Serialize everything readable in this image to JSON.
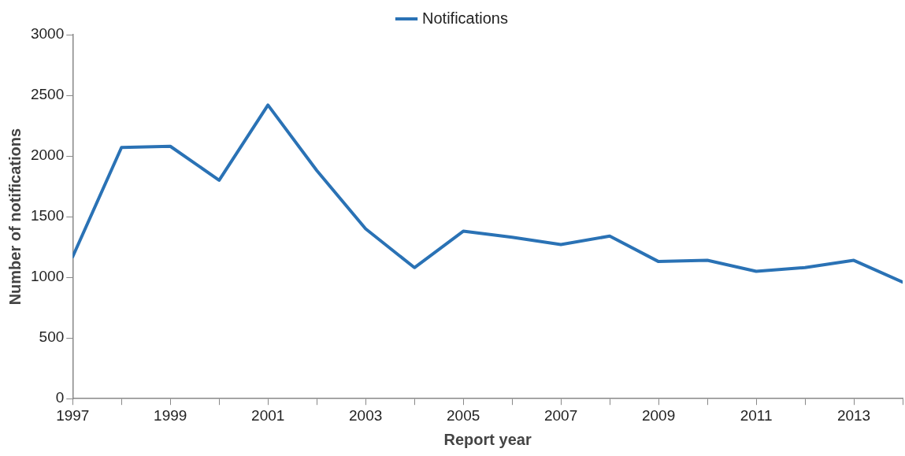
{
  "chart_data": {
    "type": "line",
    "xlabel": "Report year",
    "ylabel": "Number of notifications",
    "x": [
      1997,
      1998,
      1999,
      2000,
      2001,
      2002,
      2003,
      2004,
      2005,
      2006,
      2007,
      2008,
      2009,
      2010,
      2011,
      2012,
      2013,
      2014
    ],
    "series": [
      {
        "name": "Notifications",
        "color": "#2a72b5",
        "values": [
          1170,
          2070,
          2080,
          1800,
          2420,
          1880,
          1400,
          1080,
          1380,
          1330,
          1270,
          1340,
          1130,
          1140,
          1050,
          1080,
          1140,
          960
        ]
      }
    ],
    "xlim": [
      1997,
      2014
    ],
    "xticks": [
      1997,
      {
        "value": 1998,
        "label": null
      },
      1999,
      {
        "value": 2000,
        "label": null
      },
      2001,
      {
        "value": 2002,
        "label": null
      },
      2003,
      {
        "value": 2004,
        "label": null
      },
      2005,
      {
        "value": 2006,
        "label": null
      },
      2007,
      {
        "value": 2008,
        "label": null
      },
      2009,
      {
        "value": 2010,
        "label": null
      },
      2011,
      {
        "value": 2012,
        "label": null
      },
      2013,
      {
        "value": 2014,
        "label": null
      }
    ],
    "ylim": [
      0,
      3000
    ],
    "yticks": [
      0,
      500,
      1000,
      1500,
      2000,
      2500,
      3000
    ],
    "grid": false,
    "legend": "top",
    "marker": "none",
    "line_style": "solid"
  }
}
